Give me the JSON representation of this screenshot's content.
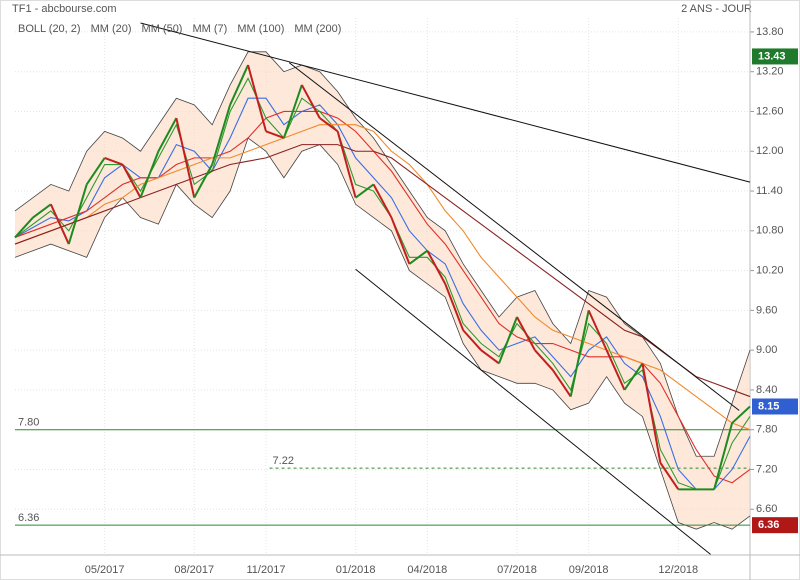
{
  "chart_data": {
    "type": "stock",
    "title": "TF1 - abcbourse.com",
    "period": "2 ANS - JOUR",
    "categories": [
      null,
      null,
      null,
      null,
      null,
      "05/2017",
      null,
      null,
      null,
      null,
      "08/2017",
      null,
      null,
      null,
      "11/2017",
      null,
      null,
      null,
      null,
      "01/2018",
      null,
      null,
      null,
      "04/2018",
      null,
      null,
      null,
      null,
      "07/2018",
      null,
      null,
      null,
      "09/2018",
      null,
      null,
      null,
      null,
      "12/2018",
      null,
      null,
      null,
      null
    ],
    "values": [
      10.7,
      11.0,
      11.2,
      10.6,
      11.5,
      11.9,
      11.8,
      11.3,
      12.0,
      12.5,
      11.3,
      11.8,
      12.7,
      13.3,
      12.3,
      12.2,
      13.0,
      12.5,
      12.3,
      11.3,
      11.5,
      11.0,
      10.3,
      10.5,
      10.0,
      9.3,
      9.0,
      8.8,
      9.5,
      9.0,
      8.7,
      8.3,
      9.6,
      9.0,
      8.4,
      8.8,
      7.3,
      6.9,
      6.9,
      6.9,
      7.9,
      8.15
    ],
    "color": "#555555",
    "bollinger": {
      "name": "BOLL (20, 2)",
      "color": "#444444",
      "fill": "#fbd9c2",
      "upper": [
        11.1,
        11.3,
        11.5,
        11.4,
        12.0,
        12.3,
        12.2,
        12.0,
        12.4,
        12.8,
        12.7,
        12.4,
        13.0,
        13.5,
        13.5,
        13.2,
        13.3,
        13.2,
        12.9,
        12.5,
        12.2,
        11.8,
        11.4,
        11.0,
        10.8,
        10.3,
        9.9,
        9.5,
        9.8,
        9.9,
        9.4,
        9.1,
        9.9,
        9.8,
        9.4,
        9.2,
        8.8,
        8.0,
        7.4,
        7.4,
        8.2,
        9.0
      ],
      "lower": [
        10.4,
        10.5,
        10.6,
        10.5,
        10.4,
        11.0,
        11.3,
        11.0,
        10.9,
        11.5,
        11.2,
        11.0,
        11.4,
        12.2,
        12.0,
        11.6,
        12.0,
        12.1,
        11.8,
        11.2,
        11.0,
        10.8,
        10.2,
        10.0,
        9.8,
        9.1,
        8.7,
        8.6,
        8.5,
        8.5,
        8.4,
        8.1,
        8.2,
        8.6,
        8.2,
        8.0,
        7.2,
        6.4,
        6.3,
        6.4,
        6.3,
        6.5
      ]
    },
    "series": [
      {
        "name": "MM (20)",
        "color": "#3b6fe0",
        "values": [
          10.7,
          10.85,
          11.0,
          10.95,
          11.1,
          11.6,
          11.8,
          11.6,
          11.6,
          12.1,
          12.0,
          11.7,
          12.2,
          12.8,
          12.8,
          12.4,
          12.6,
          12.7,
          12.4,
          11.9,
          11.6,
          11.3,
          10.8,
          10.5,
          10.3,
          9.7,
          9.3,
          9.0,
          9.1,
          9.2,
          8.9,
          8.6,
          9.0,
          9.2,
          8.8,
          8.6,
          8.0,
          7.2,
          6.9,
          6.9,
          7.2,
          7.7
        ]
      },
      {
        "name": "MM (50)",
        "color": "#e0302a",
        "values": [
          10.7,
          10.8,
          10.9,
          11.0,
          11.1,
          11.3,
          11.5,
          11.6,
          11.6,
          11.8,
          11.9,
          11.9,
          12.0,
          12.2,
          12.5,
          12.6,
          12.6,
          12.6,
          12.5,
          12.3,
          12.0,
          11.7,
          11.3,
          10.9,
          10.6,
          10.2,
          9.8,
          9.4,
          9.2,
          9.1,
          9.1,
          9.0,
          8.9,
          8.9,
          8.9,
          8.8,
          8.5,
          8.0,
          7.5,
          7.1,
          7.0,
          7.2
        ]
      },
      {
        "name": "MM (7)",
        "color": "#2e9a2e",
        "values": [
          10.7,
          10.9,
          11.1,
          10.8,
          11.3,
          11.8,
          11.8,
          11.4,
          11.9,
          12.4,
          11.5,
          11.7,
          12.6,
          13.1,
          12.5,
          12.2,
          12.8,
          12.6,
          12.3,
          11.5,
          11.4,
          11.0,
          10.4,
          10.4,
          10.1,
          9.4,
          9.1,
          8.9,
          9.4,
          9.1,
          8.8,
          8.4,
          9.4,
          9.1,
          8.5,
          8.7,
          7.5,
          7.0,
          6.9,
          6.9,
          7.6,
          8.0
        ]
      },
      {
        "name": "MM (100)",
        "color": "#f08a2c",
        "values": [
          10.6,
          10.7,
          10.8,
          10.9,
          11.0,
          11.2,
          11.3,
          11.5,
          11.6,
          11.7,
          11.8,
          11.9,
          11.9,
          12.0,
          12.1,
          12.2,
          12.3,
          12.4,
          12.4,
          12.4,
          12.3,
          12.0,
          11.8,
          11.5,
          11.1,
          10.8,
          10.4,
          10.1,
          9.8,
          9.5,
          9.3,
          9.2,
          9.1,
          9.0,
          8.9,
          8.8,
          8.7,
          8.5,
          8.3,
          8.1,
          7.9,
          7.8
        ]
      },
      {
        "name": "MM (200)",
        "color": "#8b2222",
        "values": [
          10.6,
          10.7,
          10.8,
          10.9,
          11.0,
          11.1,
          11.2,
          11.3,
          11.4,
          11.5,
          11.6,
          11.7,
          11.8,
          11.85,
          11.9,
          12.0,
          12.1,
          12.1,
          12.1,
          12.0,
          12.0,
          11.9,
          11.7,
          11.5,
          11.3,
          11.1,
          10.9,
          10.7,
          10.5,
          10.3,
          10.1,
          9.9,
          9.7,
          9.5,
          9.3,
          9.2,
          9.0,
          8.8,
          8.6,
          8.5,
          8.4,
          8.3
        ]
      }
    ],
    "trendlines": [
      {
        "from": [
          7.0,
          13.935
        ],
        "to": [
          41,
          11.535
        ]
      },
      {
        "from": [
          15.3,
          13.335
        ],
        "to": [
          40.4,
          8.09
        ]
      },
      {
        "from": [
          19.0,
          10.22
        ],
        "to": [
          38.8,
          5.92
        ]
      }
    ],
    "levels": [
      {
        "value": 7.8,
        "label": "7.80",
        "start": 0,
        "dashed": false
      },
      {
        "value": 7.22,
        "label": "7.22",
        "start": 14.2,
        "dashed": true
      },
      {
        "value": 6.36,
        "label": "6.36",
        "start": 0,
        "dashed": false
      }
    ],
    "badges": [
      {
        "value": 13.43,
        "label": "13.43",
        "color": "#1f7a2b"
      },
      {
        "value": 8.15,
        "label": "8.15",
        "color": "#2f5fd0"
      },
      {
        "value": 6.36,
        "label": "6.36",
        "color": "#b01818"
      }
    ],
    "ylim": [
      5.91,
      14.01
    ],
    "yticks": [
      {
        "value": 13.8,
        "label": "13.80"
      },
      {
        "value": 13.2,
        "label": "13.20"
      },
      {
        "value": 12.6,
        "label": "12.60"
      },
      {
        "value": 12.0,
        "label": "12.00"
      },
      {
        "value": 11.4,
        "label": "11.40"
      },
      {
        "value": 10.8,
        "label": "10.80"
      },
      {
        "value": 10.2,
        "label": "10.20"
      },
      {
        "value": 9.6,
        "label": "9.60"
      },
      {
        "value": 9.0,
        "label": "9.00"
      },
      {
        "value": 8.4,
        "label": "8.40"
      },
      {
        "value": 7.8,
        "label": "7.80"
      },
      {
        "value": 7.2,
        "label": "7.20"
      },
      {
        "value": 6.6,
        "label": "6.60"
      }
    ],
    "grid": true
  }
}
